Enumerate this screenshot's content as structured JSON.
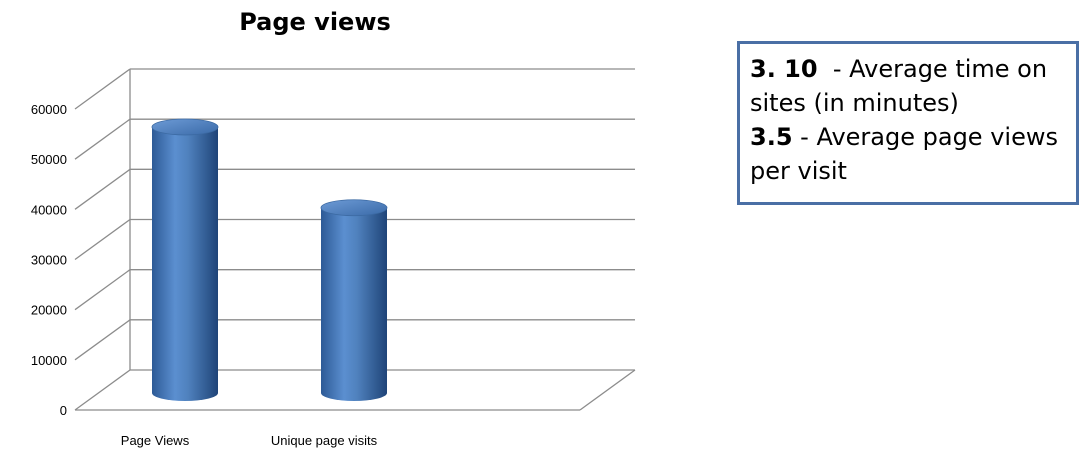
{
  "chart_data": {
    "type": "bar",
    "title": "Page views",
    "categories": [
      "Page Views",
      "Unique page visits"
    ],
    "values": [
      56000,
      39000
    ],
    "ylim": [
      0,
      60000
    ],
    "yticks": [
      "0",
      "10000",
      "20000",
      "30000",
      "40000",
      "50000",
      "60000"
    ],
    "xlabel": "",
    "ylabel": "",
    "grid": true,
    "style": "3d-cylinder",
    "bar_color": "#4f81bd"
  },
  "note": {
    "line1_value": "3. 10",
    "line1_text": "- Average time on sites (in minutes)",
    "line2_value": "3.5",
    "line2_text": "- Average page views per visit"
  }
}
